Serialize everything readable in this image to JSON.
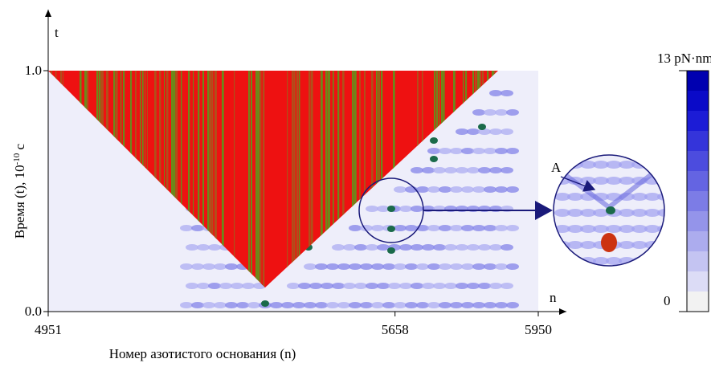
{
  "chart_data": {
    "type": "heatmap",
    "x_axis_symbol": "n",
    "y_axis_symbol": "t",
    "x_label": "Номер азотистого основания (n)",
    "y_label": {
      "text": "Время (t), 10",
      "superscript": "-10",
      "suffix": " c"
    },
    "xlim": [
      4951,
      5950
    ],
    "xticks": [
      4951,
      5658,
      5950
    ],
    "ylim": [
      0,
      1
    ],
    "yticks": [
      {
        "value": 0,
        "label": "0.0"
      },
      {
        "value": 1,
        "label": "1.0"
      }
    ],
    "annotation": "A",
    "colorbar": {
      "lim": [
        0,
        13
      ],
      "ticks": [
        {
          "value": 0,
          "label": "0"
        },
        {
          "value": 13,
          "label": "13 pN·nm"
        }
      ],
      "colors": [
        "#f2f2f2",
        "#dcdcf6",
        "#c4c4f2",
        "#acacee",
        "#9494ea",
        "#7c7ce6",
        "#6464e2",
        "#4c4cde",
        "#3434da",
        "#1c1cd6",
        "#0a0ac8",
        "#0000b0"
      ]
    }
  }
}
